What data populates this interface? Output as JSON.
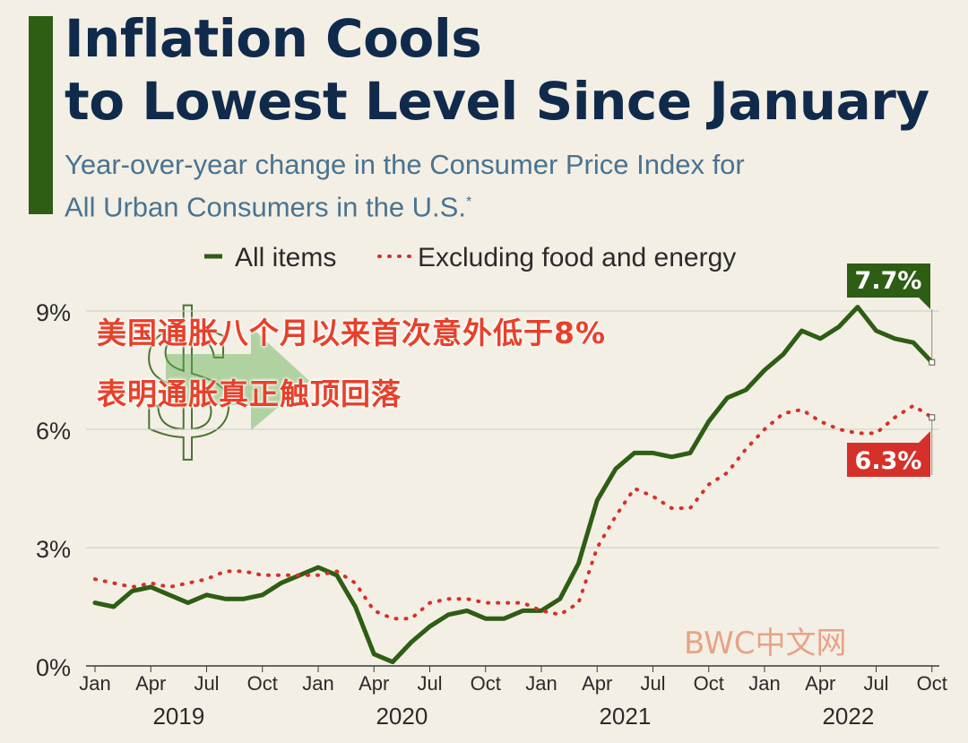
{
  "title_line1": "Inflation Cools",
  "title_line2": "to Lowest Level Since January",
  "subtitle_line1": "Year-over-year change in the Consumer Price Index for",
  "subtitle_line2": "All Urban Consumers in the U.S.",
  "subtitle_mark": "*",
  "overlay_line1": "美国通胀八个月以来首次意外低于8%",
  "overlay_line2": "表明通胀真正触顶回落",
  "watermark": "BWC中文网",
  "colors": {
    "all_items": "#2e5d14",
    "core": "#d6302a",
    "title": "#102a4c",
    "subtitle": "#4a7391",
    "background": "#f3efe4"
  },
  "chart_data": {
    "type": "line",
    "y_ticks": [
      "0%",
      "3%",
      "6%",
      "9%"
    ],
    "ylim": [
      0,
      9.5
    ],
    "x_tick_labels": [
      "Jan",
      "Apr",
      "Jul",
      "Oct",
      "Jan",
      "Apr",
      "Jul",
      "Oct",
      "Jan",
      "Apr",
      "Jul",
      "Oct",
      "Jan",
      "Apr",
      "Jul",
      "Oct"
    ],
    "years": [
      "2019",
      "2020",
      "2021",
      "2022"
    ],
    "legend": {
      "position": "top",
      "items": [
        "All items",
        "Excluding food and energy"
      ]
    },
    "series": [
      {
        "name": "All items",
        "style": "solid",
        "values": [
          1.6,
          1.5,
          1.9,
          2.0,
          1.8,
          1.6,
          1.8,
          1.7,
          1.7,
          1.8,
          2.1,
          2.3,
          2.5,
          2.3,
          1.5,
          0.3,
          0.1,
          0.6,
          1.0,
          1.3,
          1.4,
          1.2,
          1.2,
          1.4,
          1.4,
          1.7,
          2.6,
          4.2,
          5.0,
          5.4,
          5.4,
          5.3,
          5.4,
          6.2,
          6.8,
          7.0,
          7.5,
          7.9,
          8.5,
          8.3,
          8.6,
          9.1,
          8.5,
          8.3,
          8.2,
          7.7
        ],
        "end_label": "7.7%"
      },
      {
        "name": "Excluding food and energy",
        "style": "dotted",
        "values": [
          2.2,
          2.1,
          2.0,
          2.1,
          2.0,
          2.1,
          2.2,
          2.4,
          2.4,
          2.3,
          2.3,
          2.3,
          2.3,
          2.4,
          2.1,
          1.4,
          1.2,
          1.2,
          1.6,
          1.7,
          1.7,
          1.6,
          1.6,
          1.6,
          1.4,
          1.3,
          1.6,
          3.0,
          3.8,
          4.5,
          4.3,
          4.0,
          4.0,
          4.6,
          4.9,
          5.5,
          6.0,
          6.4,
          6.5,
          6.2,
          6.0,
          5.9,
          5.9,
          6.3,
          6.6,
          6.3
        ],
        "end_label": "6.3%"
      }
    ]
  }
}
